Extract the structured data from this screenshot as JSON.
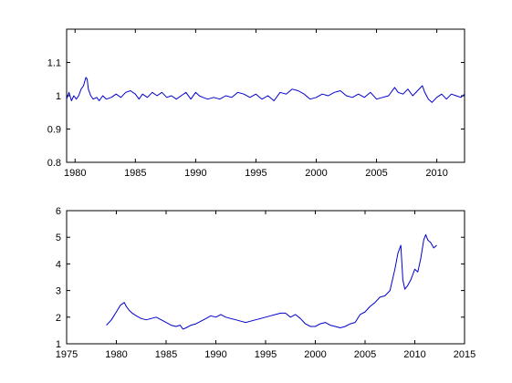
{
  "line_color": "#0000cc",
  "chart_data": [
    {
      "type": "line",
      "title": "",
      "xlabel": "",
      "ylabel": "",
      "xlim": [
        1979.3,
        2012.3
      ],
      "ylim": [
        0.8,
        1.2
      ],
      "xticks": [
        1980,
        1985,
        1990,
        1995,
        2000,
        2005,
        2010
      ],
      "xtick_labels": [
        "1980",
        "1985",
        "1990",
        "1995",
        "2000",
        "2005",
        "2010"
      ],
      "yticks": [
        0.8,
        0.9,
        1.0,
        1.1
      ],
      "ytick_labels": [
        "0.8",
        "0.9",
        "1",
        "1.1"
      ],
      "grid": false,
      "series": [
        {
          "x": [
            1979.3,
            1979.5,
            1979.7,
            1979.9,
            1980.1,
            1980.3,
            1980.5,
            1980.7,
            1980.9,
            1981.0,
            1981.1,
            1981.3,
            1981.5,
            1981.8,
            1982.0,
            1982.3,
            1982.6,
            1983.0,
            1983.4,
            1983.8,
            1984.2,
            1984.6,
            1985.0,
            1985.3,
            1985.6,
            1986.0,
            1986.4,
            1986.8,
            1987.2,
            1987.6,
            1988.0,
            1988.4,
            1988.8,
            1989.2,
            1989.6,
            1990.0,
            1990.3,
            1990.6,
            1991.0,
            1991.5,
            1992.0,
            1992.5,
            1993.0,
            1993.5,
            1994.0,
            1994.5,
            1995.0,
            1995.5,
            1996.0,
            1996.5,
            1997.0,
            1997.5,
            1998.0,
            1998.5,
            1999.0,
            1999.5,
            2000.0,
            2000.5,
            2001.0,
            2001.5,
            2002.0,
            2002.5,
            2003.0,
            2003.5,
            2004.0,
            2004.5,
            2005.0,
            2005.5,
            2006.0,
            2006.5,
            2006.8,
            2007.2,
            2007.6,
            2008.0,
            2008.4,
            2008.8,
            2009.0,
            2009.3,
            2009.6,
            2010.0,
            2010.4,
            2010.8,
            2011.2,
            2011.6,
            2012.0,
            2012.3
          ],
          "y": [
            0.99,
            1.01,
            0.985,
            1.0,
            0.99,
            1.0,
            1.02,
            1.03,
            1.055,
            1.05,
            1.02,
            1.0,
            0.99,
            0.995,
            0.985,
            1.0,
            0.99,
            0.995,
            1.005,
            0.995,
            1.01,
            1.015,
            1.005,
            0.99,
            1.005,
            0.995,
            1.01,
            1.0,
            1.01,
            0.995,
            1.0,
            0.99,
            1.0,
            1.01,
            0.99,
            1.01,
            1.0,
            0.995,
            0.99,
            0.995,
            0.99,
            1.0,
            0.995,
            1.01,
            1.005,
            0.995,
            1.005,
            0.99,
            1.0,
            0.985,
            1.01,
            1.005,
            1.02,
            1.015,
            1.005,
            0.99,
            0.995,
            1.005,
            1.0,
            1.01,
            1.015,
            1.0,
            0.995,
            1.005,
            0.995,
            1.01,
            0.99,
            0.995,
            1.0,
            1.025,
            1.01,
            1.005,
            1.02,
            1.0,
            1.015,
            1.03,
            1.01,
            0.99,
            0.98,
            0.995,
            1.005,
            0.99,
            1.005,
            1.0,
            0.995,
            1.005
          ]
        }
      ]
    },
    {
      "type": "line",
      "title": "",
      "xlabel": "",
      "ylabel": "",
      "xlim": [
        1975,
        2015
      ],
      "ylim": [
        1,
        6
      ],
      "xticks": [
        1975,
        1980,
        1985,
        1990,
        1995,
        2000,
        2005,
        2010,
        2015
      ],
      "xtick_labels": [
        "1975",
        "1980",
        "1985",
        "1990",
        "1995",
        "2000",
        "2005",
        "2010",
        "2015"
      ],
      "yticks": [
        1,
        2,
        3,
        4,
        5,
        6
      ],
      "ytick_labels": [
        "1",
        "2",
        "3",
        "4",
        "5",
        "6"
      ],
      "grid": false,
      "series": [
        {
          "x": [
            1979.0,
            1979.5,
            1980.0,
            1980.4,
            1980.8,
            1981.0,
            1981.3,
            1981.6,
            1982.0,
            1982.5,
            1983.0,
            1983.5,
            1984.0,
            1984.5,
            1985.0,
            1985.5,
            1986.0,
            1986.4,
            1986.7,
            1987.0,
            1987.5,
            1988.0,
            1988.5,
            1989.0,
            1989.5,
            1990.0,
            1990.5,
            1991.0,
            1991.5,
            1992.0,
            1992.5,
            1993.0,
            1993.5,
            1994.0,
            1994.5,
            1995.0,
            1995.5,
            1996.0,
            1996.5,
            1997.0,
            1997.5,
            1998.0,
            1998.5,
            1999.0,
            1999.5,
            2000.0,
            2000.5,
            2001.0,
            2001.5,
            2002.0,
            2002.5,
            2003.0,
            2003.5,
            2004.0,
            2004.5,
            2005.0,
            2005.5,
            2006.0,
            2006.5,
            2007.0,
            2007.5,
            2008.0,
            2008.3,
            2008.6,
            2008.8,
            2009.0,
            2009.3,
            2009.6,
            2010.0,
            2010.3,
            2010.6,
            2010.9,
            2011.1,
            2011.3,
            2011.6,
            2011.9,
            2012.2
          ],
          "y": [
            1.7,
            1.9,
            2.2,
            2.45,
            2.55,
            2.4,
            2.25,
            2.15,
            2.05,
            1.95,
            1.9,
            1.95,
            2.0,
            1.9,
            1.8,
            1.7,
            1.65,
            1.7,
            1.55,
            1.6,
            1.7,
            1.75,
            1.85,
            1.95,
            2.05,
            2.0,
            2.1,
            2.0,
            1.95,
            1.9,
            1.85,
            1.8,
            1.85,
            1.9,
            1.95,
            2.0,
            2.05,
            2.1,
            2.15,
            2.15,
            2.0,
            2.1,
            1.95,
            1.75,
            1.65,
            1.65,
            1.75,
            1.8,
            1.7,
            1.65,
            1.6,
            1.65,
            1.75,
            1.8,
            2.1,
            2.2,
            2.4,
            2.55,
            2.75,
            2.8,
            3.0,
            3.8,
            4.4,
            4.7,
            3.4,
            3.05,
            3.2,
            3.4,
            3.8,
            3.7,
            4.2,
            4.9,
            5.1,
            4.9,
            4.8,
            4.6,
            4.7
          ]
        }
      ]
    }
  ]
}
